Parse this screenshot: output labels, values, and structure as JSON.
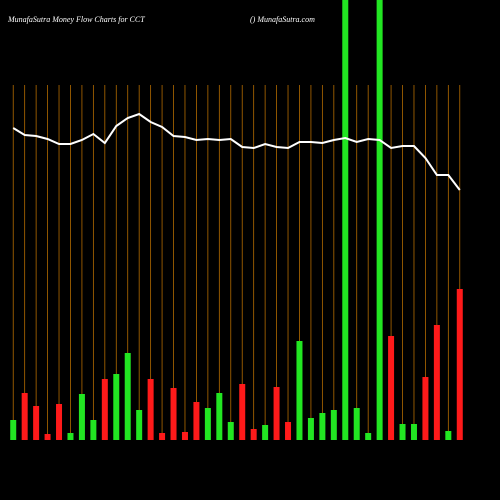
{
  "chart_data": {
    "type": "bar",
    "title": "MunafaSutra  Money Flow  Charts for CCT",
    "subtitle": "() MunafaSutra.com",
    "categories": [
      null,
      null,
      null,
      null,
      null,
      null,
      null,
      null,
      null,
      null,
      null,
      null,
      null,
      null,
      null,
      null,
      null,
      null,
      null,
      null,
      null,
      null,
      null,
      null,
      null,
      null,
      null,
      null,
      null,
      null,
      null,
      null,
      null,
      null,
      null,
      null,
      null,
      null,
      null,
      null
    ],
    "ylim": [
      0,
      440
    ],
    "series": [
      {
        "name": null,
        "type": "bar",
        "colors": [
          "#22e622",
          "#ff1a1a",
          "#ff1a1a",
          "#ff1a1a",
          "#ff1a1a",
          "#22e622",
          "#22e622",
          "#22e622",
          "#ff1a1a",
          "#22e622",
          "#22e622",
          "#22e622",
          "#ff1a1a",
          "#ff1a1a",
          "#ff1a1a",
          "#ff1a1a",
          "#ff1a1a",
          "#22e622",
          "#22e622",
          "#22e622",
          "#ff1a1a",
          "#ff1a1a",
          "#22e622",
          "#ff1a1a",
          "#ff1a1a",
          "#22e622",
          "#22e622",
          "#22e622",
          "#22e622",
          "#22e622",
          "#22e622",
          "#22e622",
          "#22e622",
          "#ff1a1a",
          "#22e622",
          "#22e622",
          "#ff1a1a",
          "#ff1a1a",
          "#22e622",
          "#ff1a1a"
        ],
        "values": [
          20,
          47,
          34,
          6,
          36,
          7,
          46,
          20,
          61,
          66,
          87,
          30,
          61,
          7,
          52,
          8,
          38,
          32,
          47,
          18,
          56,
          11,
          15,
          53,
          18,
          99,
          22,
          27,
          30,
          440,
          32,
          7,
          440,
          104,
          16,
          16,
          63,
          115,
          9,
          151
        ]
      },
      {
        "name": null,
        "type": "line",
        "color": "#ffffff",
        "values": [
          312,
          305,
          304,
          301,
          296,
          296,
          300,
          306,
          297,
          314,
          322,
          326,
          318,
          313,
          304,
          303,
          300,
          301,
          300,
          301,
          293,
          292,
          296,
          293,
          292,
          298,
          298,
          297,
          300,
          302,
          298,
          301,
          300,
          292,
          294,
          294,
          282,
          265,
          265,
          250
        ]
      }
    ]
  }
}
